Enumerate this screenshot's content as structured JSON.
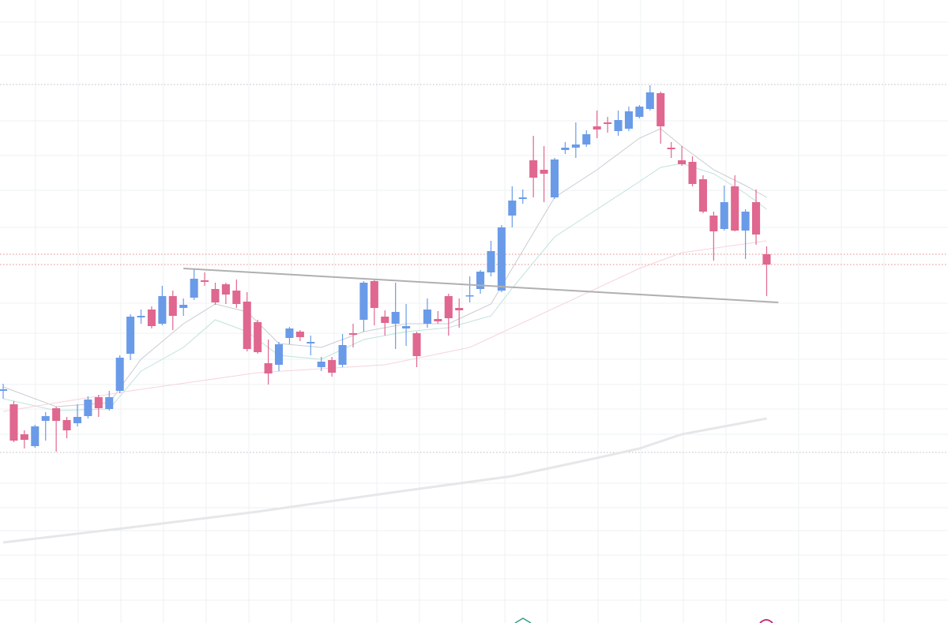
{
  "chart_data": {
    "type": "candlestick",
    "xlim": [
      -0.3,
      89.1
    ],
    "ylim": [
      0,
      789
    ],
    "up_color": "#6a9be8",
    "down_color": "#e0678f",
    "open": [
      294,
      277,
      239,
      224,
      256,
      272,
      257,
      253,
      262,
      286,
      271,
      294,
      341,
      387,
      397,
      379,
      414,
      399,
      412,
      434,
      423,
      429,
      421,
      407,
      381,
      329,
      327,
      361,
      369,
      354,
      324,
      333,
      327,
      367,
      384,
      433,
      388,
      379,
      373,
      367,
      379,
      385,
      414,
      399,
      414,
      423,
      444,
      421,
      516,
      537,
      586,
      574,
      539,
      599,
      602,
      606,
      629,
      634,
      623,
      626,
      641,
      651,
      671,
      602,
      586,
      584,
      562,
      516,
      499,
      553,
      497,
      533,
      467
    ],
    "high": [
      303,
      281,
      244,
      251,
      267,
      274,
      261,
      277,
      287,
      289,
      294,
      339,
      391,
      397,
      401,
      427,
      421,
      411,
      449,
      444,
      431,
      431,
      435,
      419,
      384,
      359,
      356,
      375,
      371,
      364,
      337,
      337,
      366,
      379,
      433,
      435,
      396,
      431,
      404,
      369,
      411,
      395,
      417,
      411,
      439,
      447,
      484,
      504,
      553,
      549,
      617,
      604,
      589,
      609,
      634,
      624,
      649,
      641,
      649,
      654,
      656,
      681,
      673,
      609,
      604,
      591,
      567,
      521,
      554,
      567,
      524,
      549,
      477
    ],
    "low": [
      284,
      229,
      221,
      222,
      231,
      217,
      234,
      249,
      259,
      261,
      269,
      291,
      333,
      379,
      373,
      377,
      371,
      389,
      409,
      427,
      403,
      404,
      399,
      344,
      341,
      302,
      319,
      353,
      357,
      339,
      319,
      312,
      324,
      349,
      369,
      377,
      364,
      347,
      351,
      324,
      374,
      379,
      364,
      374,
      406,
      417,
      439,
      419,
      501,
      531,
      539,
      533,
      537,
      594,
      589,
      603,
      614,
      621,
      617,
      623,
      639,
      649,
      607,
      589,
      579,
      553,
      519,
      459,
      497,
      496,
      461,
      479,
      414
    ],
    "close": [
      296,
      231,
      232,
      249,
      262,
      256,
      244,
      261,
      283,
      272,
      286,
      336,
      388,
      389,
      376,
      414,
      389,
      403,
      436,
      432,
      406,
      416,
      404,
      347,
      343,
      316,
      353,
      373,
      362,
      356,
      331,
      317,
      352,
      365,
      431,
      399,
      380,
      394,
      376,
      338,
      397,
      382,
      386,
      396,
      415,
      445,
      471,
      501,
      535,
      539,
      564,
      569,
      587,
      602,
      606,
      619,
      625,
      632,
      637,
      648,
      654,
      672,
      629,
      600,
      581,
      556,
      521,
      496,
      533,
      497,
      521,
      492,
      454
    ],
    "series": [
      {
        "color": "#c9ccd1",
        "x": [
          0,
          5,
          10,
          13,
          17,
          20,
          23,
          26,
          30,
          34,
          38,
          42,
          46,
          48,
          52,
          56,
          60,
          62,
          64,
          67,
          70,
          72
        ],
        "values": [
          299,
          274,
          279,
          334,
          379,
          404,
          394,
          354,
          349,
          369,
          379,
          379,
          404,
          449,
          539,
          574,
          614,
          626,
          604,
          574,
          554,
          539
        ]
      },
      {
        "color": "#bfe3dc",
        "x": [
          0,
          5,
          10,
          13,
          17,
          20,
          23,
          26,
          30,
          34,
          38,
          42,
          46,
          48,
          52,
          56,
          60,
          62,
          64,
          67,
          70,
          72
        ],
        "values": [
          284,
          269,
          271,
          319,
          349,
          384,
          369,
          339,
          334,
          359,
          369,
          374,
          389,
          424,
          489,
          524,
          559,
          577,
          582,
          569,
          544,
          524
        ]
      },
      {
        "color": "#f6d3dd",
        "x": [
          0,
          12,
          24,
          36,
          44,
          52,
          60,
          64,
          72
        ],
        "values": [
          268,
          294,
          317,
          327,
          349,
          399,
          449,
          469,
          484
        ]
      },
      {
        "color": "#e6e7e9",
        "x": [
          0,
          12,
          24,
          36,
          48,
          56,
          60,
          64,
          72
        ],
        "values": [
          102,
          121,
          141,
          164,
          186,
          209,
          221,
          239,
          259
        ],
        "width": 3
      }
    ],
    "trendline": {
      "color": "#b0b0b0",
      "x": [
        17,
        73.1
      ],
      "values": [
        449,
        406
      ]
    },
    "levels": [
      682,
      467,
      454,
      216
    ],
    "level_colors": [
      "#b8bcc4",
      "#e58b8b",
      "#e58b8b",
      "#b8bcc4"
    ]
  }
}
